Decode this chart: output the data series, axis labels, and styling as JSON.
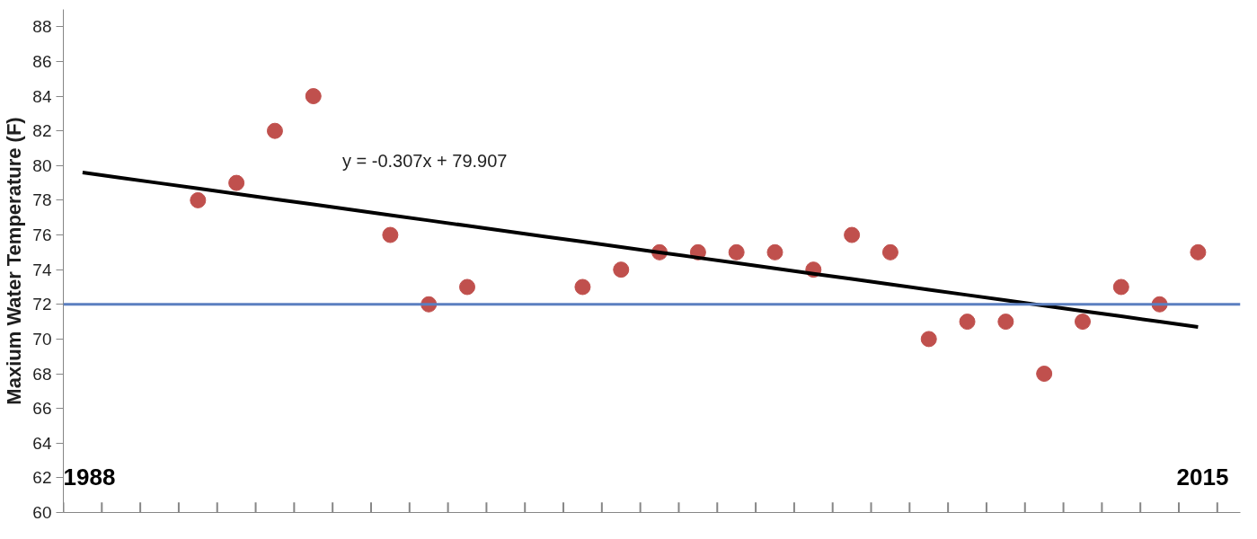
{
  "chart_data": {
    "type": "scatter",
    "ylabel": "Maxium Water Temperature (F)",
    "categories": [
      null,
      null,
      null,
      null,
      null,
      null,
      null,
      null,
      null,
      null,
      null,
      null,
      null,
      null,
      null,
      null,
      null,
      null,
      null,
      null,
      null,
      null,
      null,
      null,
      null,
      null,
      null,
      null,
      null,
      null
    ],
    "ylim": [
      60,
      89
    ],
    "yticks": [
      60,
      62,
      64,
      66,
      68,
      70,
      72,
      74,
      76,
      78,
      80,
      82,
      84,
      86,
      88
    ],
    "tick_labels": "y",
    "series": [
      {
        "color": "#c0504d",
        "marker": "circle",
        "values": [
          null,
          null,
          null,
          78,
          79,
          82,
          84,
          null,
          76,
          72,
          73,
          null,
          null,
          73,
          74,
          75,
          75,
          75,
          75,
          74,
          76,
          75,
          70,
          71,
          71,
          68,
          71,
          73,
          72,
          75
        ]
      },
      {
        "type": "line",
        "color": "#000000",
        "marker": "none",
        "values": [
          79.6,
          79.293,
          78.986,
          78.679,
          78.372,
          78.065,
          77.758,
          77.451,
          77.144,
          76.837,
          76.53,
          76.223,
          75.916,
          75.609,
          75.302,
          74.995,
          74.688,
          74.381,
          74.074,
          73.767,
          73.46,
          73.153,
          72.846,
          72.539,
          72.232,
          71.925,
          71.618,
          71.311,
          71.004,
          70.697
        ]
      }
    ],
    "ref_lines": [
      {
        "axis": "y",
        "value": 72,
        "color": "#5b7fc0"
      }
    ],
    "annotations": [
      "y = -0.307x + 79.907",
      "1988",
      "2015"
    ]
  }
}
